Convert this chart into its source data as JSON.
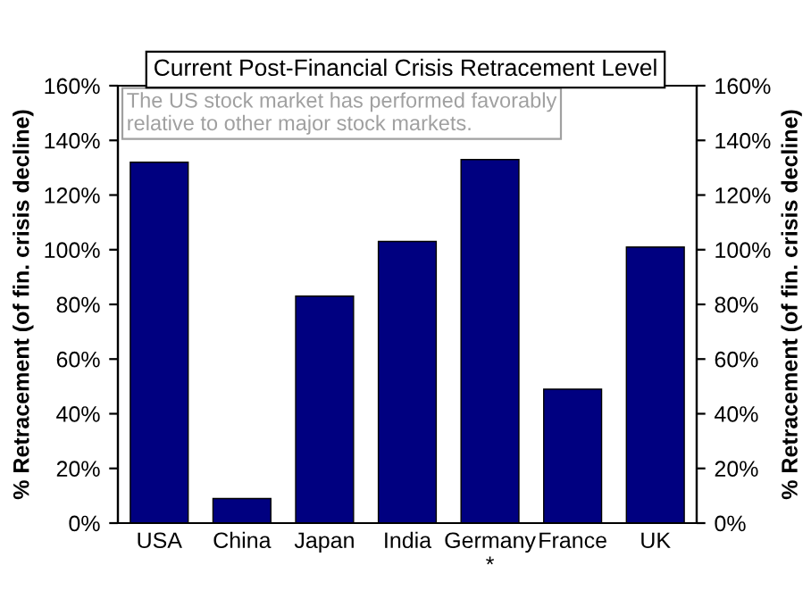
{
  "chart_data": {
    "type": "bar",
    "title": "Current Post-Financial Crisis Retracement Level",
    "categories": [
      "USA",
      "China",
      "Japan",
      "India",
      "Germany\n*",
      "France",
      "UK"
    ],
    "series": [
      {
        "color": "#000080",
        "values": [
          132,
          9,
          83,
          103,
          133,
          49,
          101
        ]
      }
    ],
    "ylabel": "% Retracement (of fin. crisis decline)",
    "y2label": "% Retracement (of fin. crisis decline)",
    "ylim": [
      0,
      160
    ],
    "yticks": [
      {
        "value": 0,
        "label": "0%"
      },
      {
        "value": 20,
        "label": "20%"
      },
      {
        "value": 40,
        "label": "40%"
      },
      {
        "value": 60,
        "label": "60%"
      },
      {
        "value": 80,
        "label": "80%"
      },
      {
        "value": 100,
        "label": "100%"
      },
      {
        "value": 120,
        "label": "120%"
      },
      {
        "value": 140,
        "label": "140%"
      },
      {
        "value": 160,
        "label": "160%"
      }
    ],
    "y2lim": [
      0,
      160
    ],
    "y2ticks": [
      {
        "value": 0,
        "label": "0%"
      },
      {
        "value": 20,
        "label": "20%"
      },
      {
        "value": 40,
        "label": "40%"
      },
      {
        "value": 60,
        "label": "60%"
      },
      {
        "value": 80,
        "label": "80%"
      },
      {
        "value": 100,
        "label": "100%"
      },
      {
        "value": 120,
        "label": "120%"
      },
      {
        "value": 140,
        "label": "140%"
      },
      {
        "value": 160,
        "label": "160%"
      }
    ],
    "annotations": [
      "The US stock market has performed favorably\nrelative to other major stock markets."
    ],
    "grid": false,
    "legend": false
  }
}
